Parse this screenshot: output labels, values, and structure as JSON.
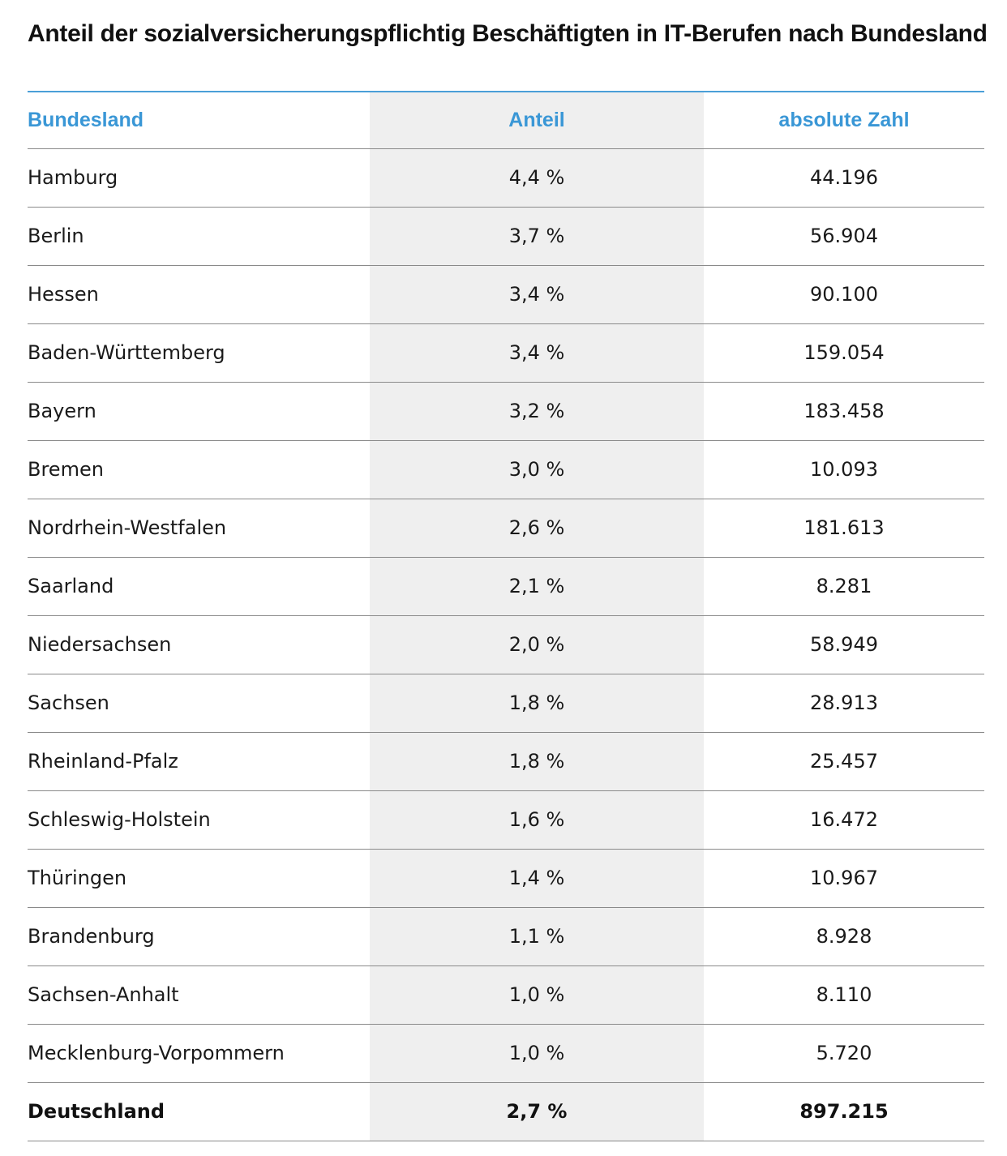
{
  "title": "Anteil der sozialversicherungspflichtig Beschäftigten in IT-Berufen nach Bundesland",
  "table": {
    "headers": {
      "bundesland": "Bundesland",
      "anteil": "Anteil",
      "absolute": "absolute Zahl"
    },
    "rows": [
      {
        "land": "Hamburg",
        "anteil": "4,4 %",
        "absolut": "44.196"
      },
      {
        "land": "Berlin",
        "anteil": "3,7 %",
        "absolut": "56.904"
      },
      {
        "land": "Hessen",
        "anteil": "3,4 %",
        "absolut": "90.100"
      },
      {
        "land": "Baden-Württemberg",
        "anteil": "3,4 %",
        "absolut": "159.054"
      },
      {
        "land": "Bayern",
        "anteil": "3,2 %",
        "absolut": "183.458"
      },
      {
        "land": "Bremen",
        "anteil": "3,0 %",
        "absolut": "10.093"
      },
      {
        "land": "Nordrhein-Westfalen",
        "anteil": "2,6 %",
        "absolut": "181.613"
      },
      {
        "land": "Saarland",
        "anteil": "2,1 %",
        "absolut": "8.281"
      },
      {
        "land": "Niedersachsen",
        "anteil": "2,0 %",
        "absolut": "58.949"
      },
      {
        "land": "Sachsen",
        "anteil": "1,8 %",
        "absolut": "28.913"
      },
      {
        "land": "Rheinland-Pfalz",
        "anteil": "1,8 %",
        "absolut": "25.457"
      },
      {
        "land": "Schleswig-Holstein",
        "anteil": "1,6 %",
        "absolut": "16.472"
      },
      {
        "land": "Thüringen",
        "anteil": "1,4 %",
        "absolut": "10.967"
      },
      {
        "land": "Brandenburg",
        "anteil": "1,1 %",
        "absolut": "8.928"
      },
      {
        "land": "Sachsen-Anhalt",
        "anteil": "1,0 %",
        "absolut": "8.110"
      },
      {
        "land": "Mecklenburg-Vorpommern",
        "anteil": "1,0 %",
        "absolut": "5.720"
      }
    ],
    "total": {
      "land": "Deutschland",
      "anteil": "2,7 %",
      "absolut": "897.215"
    }
  },
  "colors": {
    "header_text": "#3a97d6",
    "top_rule": "#4a9fd8",
    "shaded_column": "#efefef",
    "row_rule": "#8a8a8a"
  }
}
